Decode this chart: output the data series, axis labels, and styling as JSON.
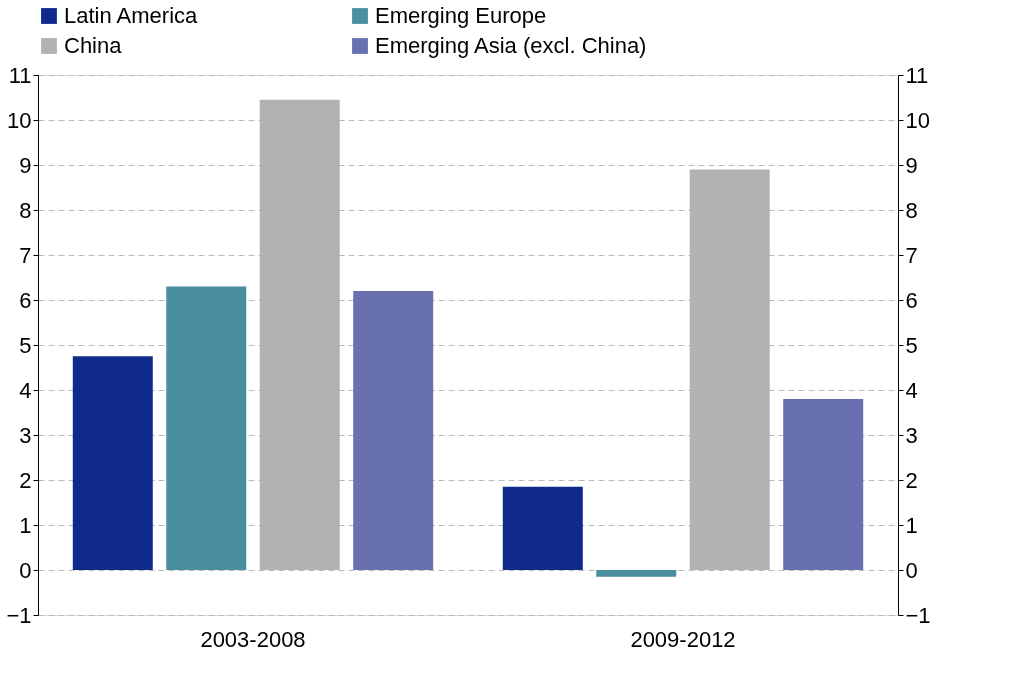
{
  "chart_data": {
    "type": "bar",
    "categories": [
      "2003-2008",
      "2009-2012"
    ],
    "series": [
      {
        "name": "Latin America",
        "color": "#0f2a8a",
        "values": [
          4.75,
          1.85
        ]
      },
      {
        "name": "Emerging Europe",
        "color": "#4a8fa0",
        "values": [
          6.3,
          -0.15
        ]
      },
      {
        "name": "China",
        "color": "#b2b2b2",
        "values": [
          10.45,
          8.9
        ]
      },
      {
        "name": "Emerging Asia (excl. China)",
        "color": "#6870b0",
        "values": [
          6.2,
          3.8
        ]
      }
    ],
    "ylim": [
      -1,
      11
    ],
    "yticks": [
      -1,
      0,
      1,
      2,
      3,
      4,
      5,
      6,
      7,
      8,
      9,
      10,
      11
    ],
    "y2lim": [
      -1,
      11
    ],
    "y2ticks": [
      -1,
      0,
      1,
      2,
      3,
      4,
      5,
      6,
      7,
      8,
      9,
      10,
      11
    ],
    "grid": "y",
    "legend": "top"
  }
}
